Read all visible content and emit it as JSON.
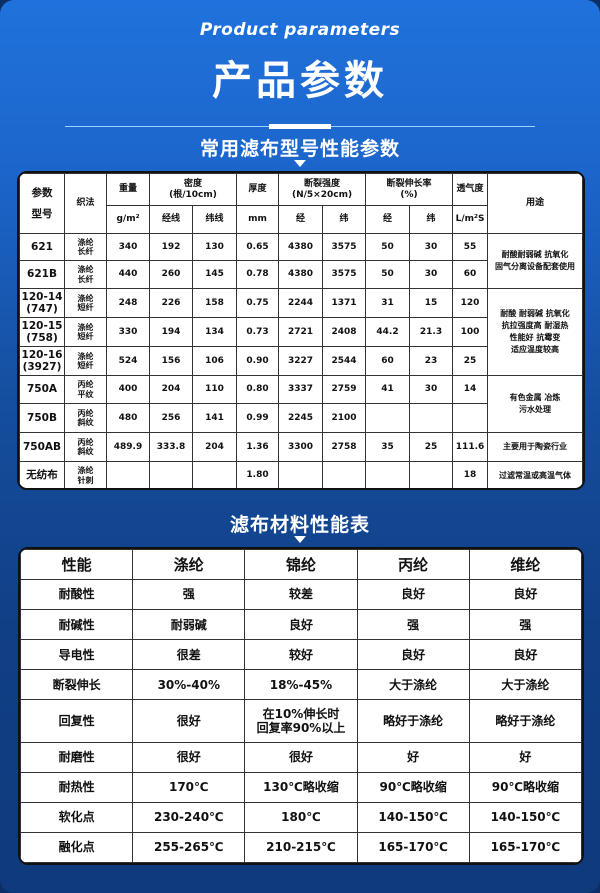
{
  "header": {
    "subtitle_en": "Product parameters",
    "title": "产品参数"
  },
  "section1": {
    "title": "常用滤布型号性能参数",
    "headers": {
      "model": "参数\n型号",
      "weave": "织法",
      "weight": "重量",
      "weight_unit": "g/m²",
      "density": "密度\n(根/10cm)",
      "warp_line": "经线",
      "weft_line": "纬线",
      "thickness": "厚度",
      "thickness_unit": "mm",
      "strength": "断裂强度\n(N/5×20cm)",
      "warp": "经",
      "weft": "纬",
      "elong": "断裂伸长率\n(%)",
      "perm": "透气度",
      "perm_unit": "L/m²S",
      "use": "用途"
    },
    "rows": [
      {
        "model": "621",
        "weave": "涤纶\n长纤",
        "weight": "340",
        "warp_d": "192",
        "weft_d": "130",
        "thick": "0.65",
        "str_warp": "4380",
        "str_weft": "3575",
        "el_warp": "50",
        "el_weft": "30",
        "perm": "55"
      },
      {
        "model": "621B",
        "weave": "涤纶\n长纤",
        "weight": "440",
        "warp_d": "260",
        "weft_d": "145",
        "thick": "0.78",
        "str_warp": "4380",
        "str_weft": "3575",
        "el_warp": "50",
        "el_weft": "30",
        "perm": "60"
      },
      {
        "model": "120-14\n(747)",
        "weave": "涤纶\n短纤",
        "weight": "248",
        "warp_d": "226",
        "weft_d": "158",
        "thick": "0.75",
        "str_warp": "2244",
        "str_weft": "1371",
        "el_warp": "31",
        "el_weft": "15",
        "perm": "120"
      },
      {
        "model": "120-15\n(758)",
        "weave": "涤纶\n短纤",
        "weight": "330",
        "warp_d": "194",
        "weft_d": "134",
        "thick": "0.73",
        "str_warp": "2721",
        "str_weft": "2408",
        "el_warp": "44.2",
        "el_weft": "21.3",
        "perm": "100"
      },
      {
        "model": "120-16\n(3927)",
        "weave": "涤纶\n短纤",
        "weight": "524",
        "warp_d": "156",
        "weft_d": "106",
        "thick": "0.90",
        "str_warp": "3227",
        "str_weft": "2544",
        "el_warp": "60",
        "el_weft": "23",
        "perm": "25"
      },
      {
        "model": "750A",
        "weave": "丙纶\n平纹",
        "weight": "400",
        "warp_d": "204",
        "weft_d": "110",
        "thick": "0.80",
        "str_warp": "3337",
        "str_weft": "2759",
        "el_warp": "41",
        "el_weft": "30",
        "perm": "14"
      },
      {
        "model": "750B",
        "weave": "丙纶\n斜纹",
        "weight": "480",
        "warp_d": "256",
        "weft_d": "141",
        "thick": "0.99",
        "str_warp": "2245",
        "str_weft": "2100",
        "el_warp": "",
        "el_weft": "",
        "perm": ""
      },
      {
        "model": "750AB",
        "weave": "丙纶\n斜纹",
        "weight": "489.9",
        "warp_d": "333.8",
        "weft_d": "204",
        "thick": "1.36",
        "str_warp": "3300",
        "str_weft": "2758",
        "el_warp": "35",
        "el_weft": "25",
        "perm": "111.6"
      },
      {
        "model": "无纺布",
        "weave": "涤纶\n针刺",
        "weight": "",
        "warp_d": "",
        "weft_d": "",
        "thick": "1.80",
        "str_warp": "",
        "str_weft": "",
        "el_warp": "",
        "el_weft": "",
        "perm": "18"
      }
    ],
    "uses": [
      "耐酸耐弱碱 抗氧化\n固气分离设备配套使用",
      "耐酸 耐弱碱 抗氧化\n抗拉强度高 耐湿热\n性能好 抗霉变\n适应温度较高",
      "有色金属 冶炼\n污水处理",
      "主要用于陶瓷行业",
      "过滤常温或高温气体"
    ]
  },
  "section2": {
    "title": "滤布材料性能表",
    "headers": [
      "性能",
      "涤纶",
      "锦纶",
      "丙纶",
      "维纶"
    ],
    "rows": [
      [
        "耐酸性",
        "强",
        "较差",
        "良好",
        "良好"
      ],
      [
        "耐碱性",
        "耐弱碱",
        "良好",
        "强",
        "强"
      ],
      [
        "导电性",
        "很差",
        "较好",
        "良好",
        "良好"
      ],
      [
        "断裂伸长",
        "30%-40%",
        "18%-45%",
        "大于涤纶",
        "大于涤纶"
      ],
      [
        "回复性",
        "很好",
        "在10%伸长时\n回复率90%以上",
        "略好于涤纶",
        "略好于涤纶"
      ],
      [
        "耐磨性",
        "很好",
        "很好",
        "好",
        "好"
      ],
      [
        "耐热性",
        "170℃",
        "130℃略收缩",
        "90℃略收缩",
        "90℃略收缩"
      ],
      [
        "软化点",
        "230-240℃",
        "180℃",
        "140-150℃",
        "140-150℃"
      ],
      [
        "融化点",
        "255-265℃",
        "210-215℃",
        "165-170℃",
        "165-170℃"
      ]
    ]
  }
}
